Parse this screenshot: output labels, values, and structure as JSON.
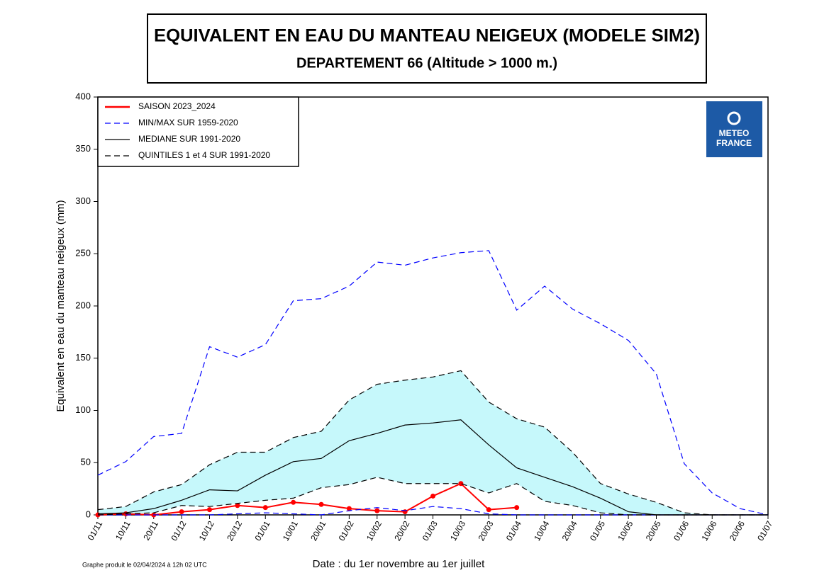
{
  "chart_data": {
    "type": "line",
    "title": "EQUIVALENT EN EAU DU MANTEAU NEIGEUX (MODELE SIM2)",
    "subtitle": "DEPARTEMENT 66  (Altitude > 1000 m.)",
    "ylabel": "Equivalent en eau du manteau neigeux (mm)",
    "xlabel": "Date : du 1er novembre au 1er juillet",
    "footnote": "Graphe produit le 02/04/2024 à 12h 02 UTC",
    "logo": [
      "METEO",
      "FRANCE"
    ],
    "categories": [
      "01/11",
      "10/11",
      "20/11",
      "01/12",
      "10/12",
      "20/12",
      "01/01",
      "10/01",
      "20/01",
      "01/02",
      "10/02",
      "20/02",
      "01/03",
      "10/03",
      "20/03",
      "01/04",
      "10/04",
      "20/04",
      "01/05",
      "10/05",
      "20/05",
      "01/06",
      "10/06",
      "20/06",
      "01/07"
    ],
    "ylim": [
      0,
      400
    ],
    "yticks": [
      0,
      50,
      100,
      150,
      200,
      250,
      300,
      350,
      400
    ],
    "series": [
      {
        "name": "SAISON 2023_2024",
        "color": "#ff0000",
        "dash": "solid",
        "markers": true,
        "values": [
          0,
          1,
          0,
          3,
          5,
          9,
          7,
          12,
          10,
          6,
          4,
          3,
          18,
          30,
          5,
          7,
          null,
          null,
          null,
          null,
          null,
          null,
          null,
          null,
          null
        ]
      },
      {
        "name": "MIN/MAX SUR 1959-2020",
        "color": "#0000ff",
        "dash": "dashed",
        "values": [
          38,
          51,
          75,
          78,
          161,
          151,
          163,
          205,
          207,
          219,
          242,
          239,
          246,
          251,
          253,
          196,
          219,
          197,
          183,
          167,
          135,
          49,
          21,
          6,
          0
        ],
        "lower": [
          0,
          0,
          0,
          0,
          0,
          1,
          2,
          1,
          0,
          4,
          7,
          4,
          8,
          6,
          1,
          0,
          0,
          0,
          0,
          0,
          0,
          0,
          0,
          0,
          0
        ]
      },
      {
        "name": "MEDIANE SUR 1991-2020",
        "color": "#000000",
        "dash": "solid",
        "values": [
          1,
          2,
          6,
          14,
          24,
          23,
          38,
          51,
          54,
          71,
          78,
          86,
          88,
          91,
          67,
          45,
          36,
          27,
          16,
          3,
          0,
          0,
          0,
          0,
          0
        ]
      },
      {
        "name": "QUINTILES 1 et 4 SUR 1991-2020",
        "color": "#000000",
        "dash": "dashed",
        "fill": "#c6f8fb",
        "values": [
          5,
          8,
          22,
          29,
          48,
          60,
          60,
          74,
          80,
          110,
          125,
          129,
          132,
          138,
          108,
          92,
          84,
          60,
          30,
          20,
          12,
          2,
          0,
          0,
          0
        ],
        "lower": [
          0,
          1,
          2,
          9,
          8,
          11,
          14,
          16,
          26,
          29,
          36,
          30,
          30,
          30,
          21,
          30,
          13,
          9,
          2,
          0,
          0,
          0,
          0,
          0,
          0
        ]
      }
    ]
  }
}
